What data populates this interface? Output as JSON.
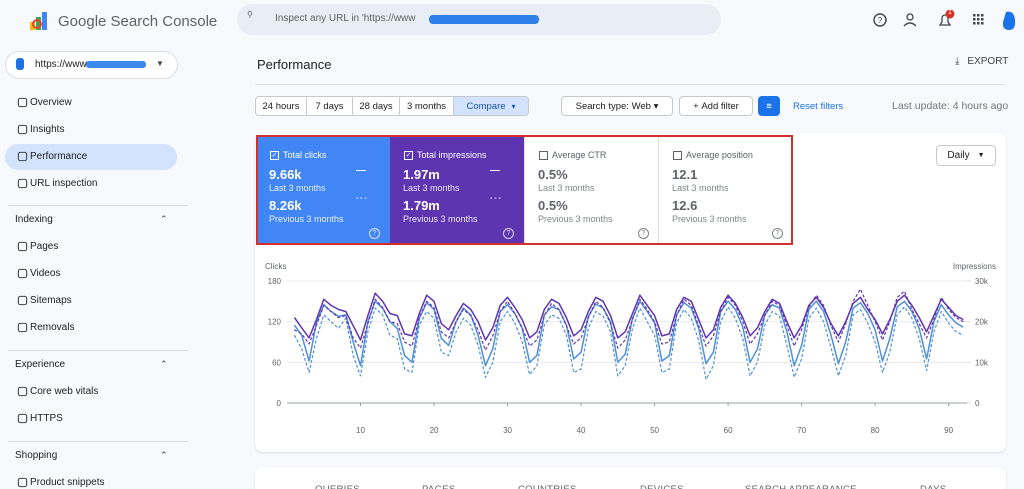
{
  "header": {
    "product": "Google Search Console",
    "search_placeholder": "Inspect any URL in 'https://www",
    "notification_count": "1"
  },
  "sidebar": {
    "property": "https://www",
    "items": [
      "Overview",
      "Insights",
      "Performance",
      "URL inspection"
    ],
    "sections": [
      {
        "title": "Indexing",
        "items": [
          "Pages",
          "Videos",
          "Sitemaps",
          "Removals"
        ]
      },
      {
        "title": "Experience",
        "items": [
          "Core web vitals",
          "HTTPS"
        ]
      },
      {
        "title": "Shopping",
        "items": [
          "Product snippets"
        ]
      }
    ]
  },
  "page": {
    "title": "Performance",
    "export": "EXPORT"
  },
  "filters": {
    "ranges": [
      "24 hours",
      "7 days",
      "28 days",
      "3 months",
      "Compare"
    ],
    "search_type": "Search type: Web",
    "add_filter": "Add filter",
    "reset": "Reset filters",
    "last_update": "Last update: 4 hours ago"
  },
  "cards": [
    {
      "label": "Total clicks",
      "value": "9.66k",
      "period": "Last 3 months",
      "prev_value": "8.26k",
      "prev_period": "Previous 3 months"
    },
    {
      "label": "Total impressions",
      "value": "1.97m",
      "period": "Last 3 months",
      "prev_value": "1.79m",
      "prev_period": "Previous 3 months"
    },
    {
      "label": "Average CTR",
      "value": "0.5%",
      "period": "Last 3 months",
      "prev_value": "0.5%",
      "prev_period": "Previous 3 months"
    },
    {
      "label": "Average position",
      "value": "12.1",
      "period": "Last 3 months",
      "prev_value": "12.6",
      "prev_period": "Previous 3 months"
    }
  ],
  "granularity": "Daily",
  "tabs": [
    "QUERIES",
    "PAGES",
    "COUNTRIES",
    "DEVICES",
    "SEARCH APPEARANCE",
    "DAYS"
  ],
  "chart_data": {
    "type": "line",
    "y_label": "Clicks",
    "y2_label": "Impressions",
    "x": [
      1,
      2,
      3,
      4,
      5,
      6,
      7,
      8,
      9,
      10,
      11,
      12,
      13,
      14,
      15,
      16,
      17,
      18,
      19,
      20,
      21,
      22,
      23,
      24,
      25,
      26,
      27,
      28,
      29,
      30,
      31,
      32,
      33,
      34,
      35,
      36,
      37,
      38,
      39,
      40,
      41,
      42,
      43,
      44,
      45,
      46,
      47,
      48,
      49,
      50,
      51,
      52,
      53,
      54,
      55,
      56,
      57,
      58,
      59,
      60,
      61,
      62,
      63,
      64,
      65,
      66,
      67,
      68,
      69,
      70,
      71,
      72,
      73,
      74,
      75,
      76,
      77,
      78,
      79,
      80,
      81,
      82,
      83,
      84,
      85,
      86,
      87,
      88,
      89,
      90,
      91,
      92
    ],
    "xlim": [
      0,
      92.5
    ],
    "xticks": [
      10,
      20,
      30,
      40,
      50,
      60,
      70,
      80,
      90
    ],
    "ylim": [
      0,
      180
    ],
    "yticks": [
      0,
      60,
      120,
      180
    ],
    "y2lim": [
      0,
      30000
    ],
    "y2ticks": [
      0,
      {
        "value": 10000,
        "label": "10k"
      },
      {
        "value": 20000,
        "label": "20k"
      },
      {
        "value": 30000,
        "label": "30k"
      }
    ],
    "series": [
      {
        "color": "#4f8fd8",
        "dashed": false,
        "values": [
          115,
          100,
          62,
          118,
          145,
          135,
          128,
          130,
          90,
          55,
          120,
          150,
          140,
          120,
          110,
          70,
          60,
          125,
          148,
          138,
          95,
          85,
          120,
          140,
          130,
          100,
          55,
          80,
          135,
          145,
          132,
          110,
          60,
          70,
          130,
          142,
          138,
          115,
          65,
          75,
          128,
          146,
          140,
          120,
          60,
          72,
          125,
          150,
          135,
          118,
          62,
          70,
          130,
          148,
          140,
          110,
          58,
          75,
          135,
          150,
          138,
          112,
          60,
          80,
          130,
          145,
          140,
          105,
          55,
          85,
          138,
          150,
          135,
          100,
          58,
          90,
          140,
          148,
          132,
          108,
          62,
          95,
          142,
          150,
          135,
          110,
          65,
          120,
          145,
          130,
          118,
          112
        ]
      },
      {
        "color": "#4f8fd8",
        "dashed": true,
        "values": [
          100,
          80,
          45,
          95,
          130,
          120,
          110,
          125,
          70,
          40,
          105,
          140,
          130,
          100,
          95,
          50,
          45,
          115,
          135,
          125,
          75,
          70,
          105,
          125,
          115,
          85,
          38,
          60,
          120,
          135,
          118,
          90,
          42,
          55,
          115,
          130,
          125,
          100,
          45,
          50,
          110,
          135,
          128,
          105,
          40,
          55,
          110,
          140,
          120,
          100,
          45,
          50,
          118,
          138,
          125,
          92,
          35,
          55,
          120,
          142,
          125,
          95,
          40,
          60,
          115,
          135,
          128,
          85,
          38,
          65,
          125,
          140,
          120,
          82,
          40,
          70,
          130,
          138,
          118,
          90,
          45,
          75,
          130,
          142,
          125,
          95,
          48,
          105,
          135,
          118,
          105,
          100
        ]
      },
      {
        "color": "#5e35b1",
        "dashed": false,
        "axis": "y2",
        "values": [
          21000,
          18500,
          16000,
          20500,
          25500,
          24000,
          23000,
          22500,
          19000,
          15500,
          21500,
          27000,
          25000,
          22000,
          21500,
          17000,
          16500,
          22000,
          26500,
          25000,
          19500,
          18000,
          21500,
          24500,
          23000,
          20000,
          15500,
          18500,
          24000,
          26000,
          23500,
          20500,
          16000,
          17500,
          23000,
          25500,
          24500,
          21000,
          16500,
          18000,
          22500,
          26000,
          25000,
          21500,
          16000,
          17500,
          22000,
          26500,
          24000,
          21500,
          16500,
          17000,
          23000,
          26000,
          25000,
          20500,
          16000,
          18000,
          23500,
          26500,
          24500,
          21000,
          16500,
          18500,
          22500,
          25500,
          24500,
          20000,
          16000,
          19000,
          24000,
          26000,
          23500,
          19500,
          16500,
          20000,
          24500,
          26000,
          23000,
          20500,
          17000,
          20500,
          25000,
          26500,
          24000,
          21000,
          17500,
          21500,
          25500,
          23500,
          21500,
          20500
        ]
      },
      {
        "color": "#5e35b1",
        "dashed": true,
        "axis": "y2",
        "values": [
          18000,
          17000,
          14500,
          19000,
          24000,
          22500,
          21000,
          21500,
          16000,
          13500,
          19500,
          25500,
          23500,
          20000,
          19500,
          15000,
          14000,
          21000,
          25000,
          23500,
          17500,
          16000,
          20000,
          23000,
          21500,
          18000,
          13000,
          16500,
          22500,
          25000,
          22000,
          18500,
          14000,
          15500,
          21500,
          24500,
          23000,
          19000,
          14500,
          16000,
          21000,
          25000,
          23500,
          19500,
          13500,
          15500,
          20500,
          25500,
          23000,
          20000,
          14500,
          15000,
          21500,
          25500,
          24000,
          19000,
          14000,
          16500,
          22500,
          26000,
          24000,
          20000,
          14500,
          17000,
          21500,
          25000,
          24000,
          19000,
          14000,
          18000,
          23500,
          26500,
          24000,
          19000,
          15000,
          19500,
          25000,
          28000,
          24000,
          20000,
          15500,
          20000,
          26000,
          27500,
          23000,
          19500,
          16000,
          20500,
          26000,
          23000,
          21000,
          20000
        ]
      }
    ]
  }
}
